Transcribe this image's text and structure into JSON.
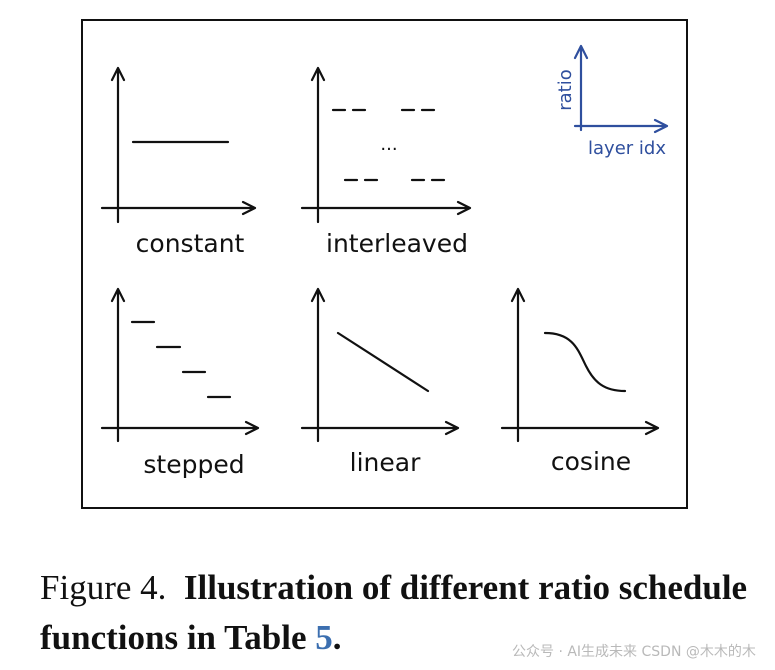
{
  "panels": [
    {
      "id": "constant",
      "label": "constant"
    },
    {
      "id": "interleaved",
      "label": "interleaved",
      "ellipsis": "..."
    },
    {
      "id": "stepped",
      "label": "stepped"
    },
    {
      "id": "linear",
      "label": "linear"
    },
    {
      "id": "cosine",
      "label": "cosine"
    }
  ],
  "legend": {
    "y_axis_label": "ratio",
    "x_axis_label": "layer idx",
    "color": "#2f4f9e"
  },
  "caption": {
    "prefix": "Figure 4.",
    "bold_text": "Illustration of different ratio schedule functions in Table",
    "table_ref": "5",
    "end": ".",
    "ref_color": "#3c6fb0"
  },
  "watermark": "公众号 · AI生成未来  CSDN @木木的木"
}
